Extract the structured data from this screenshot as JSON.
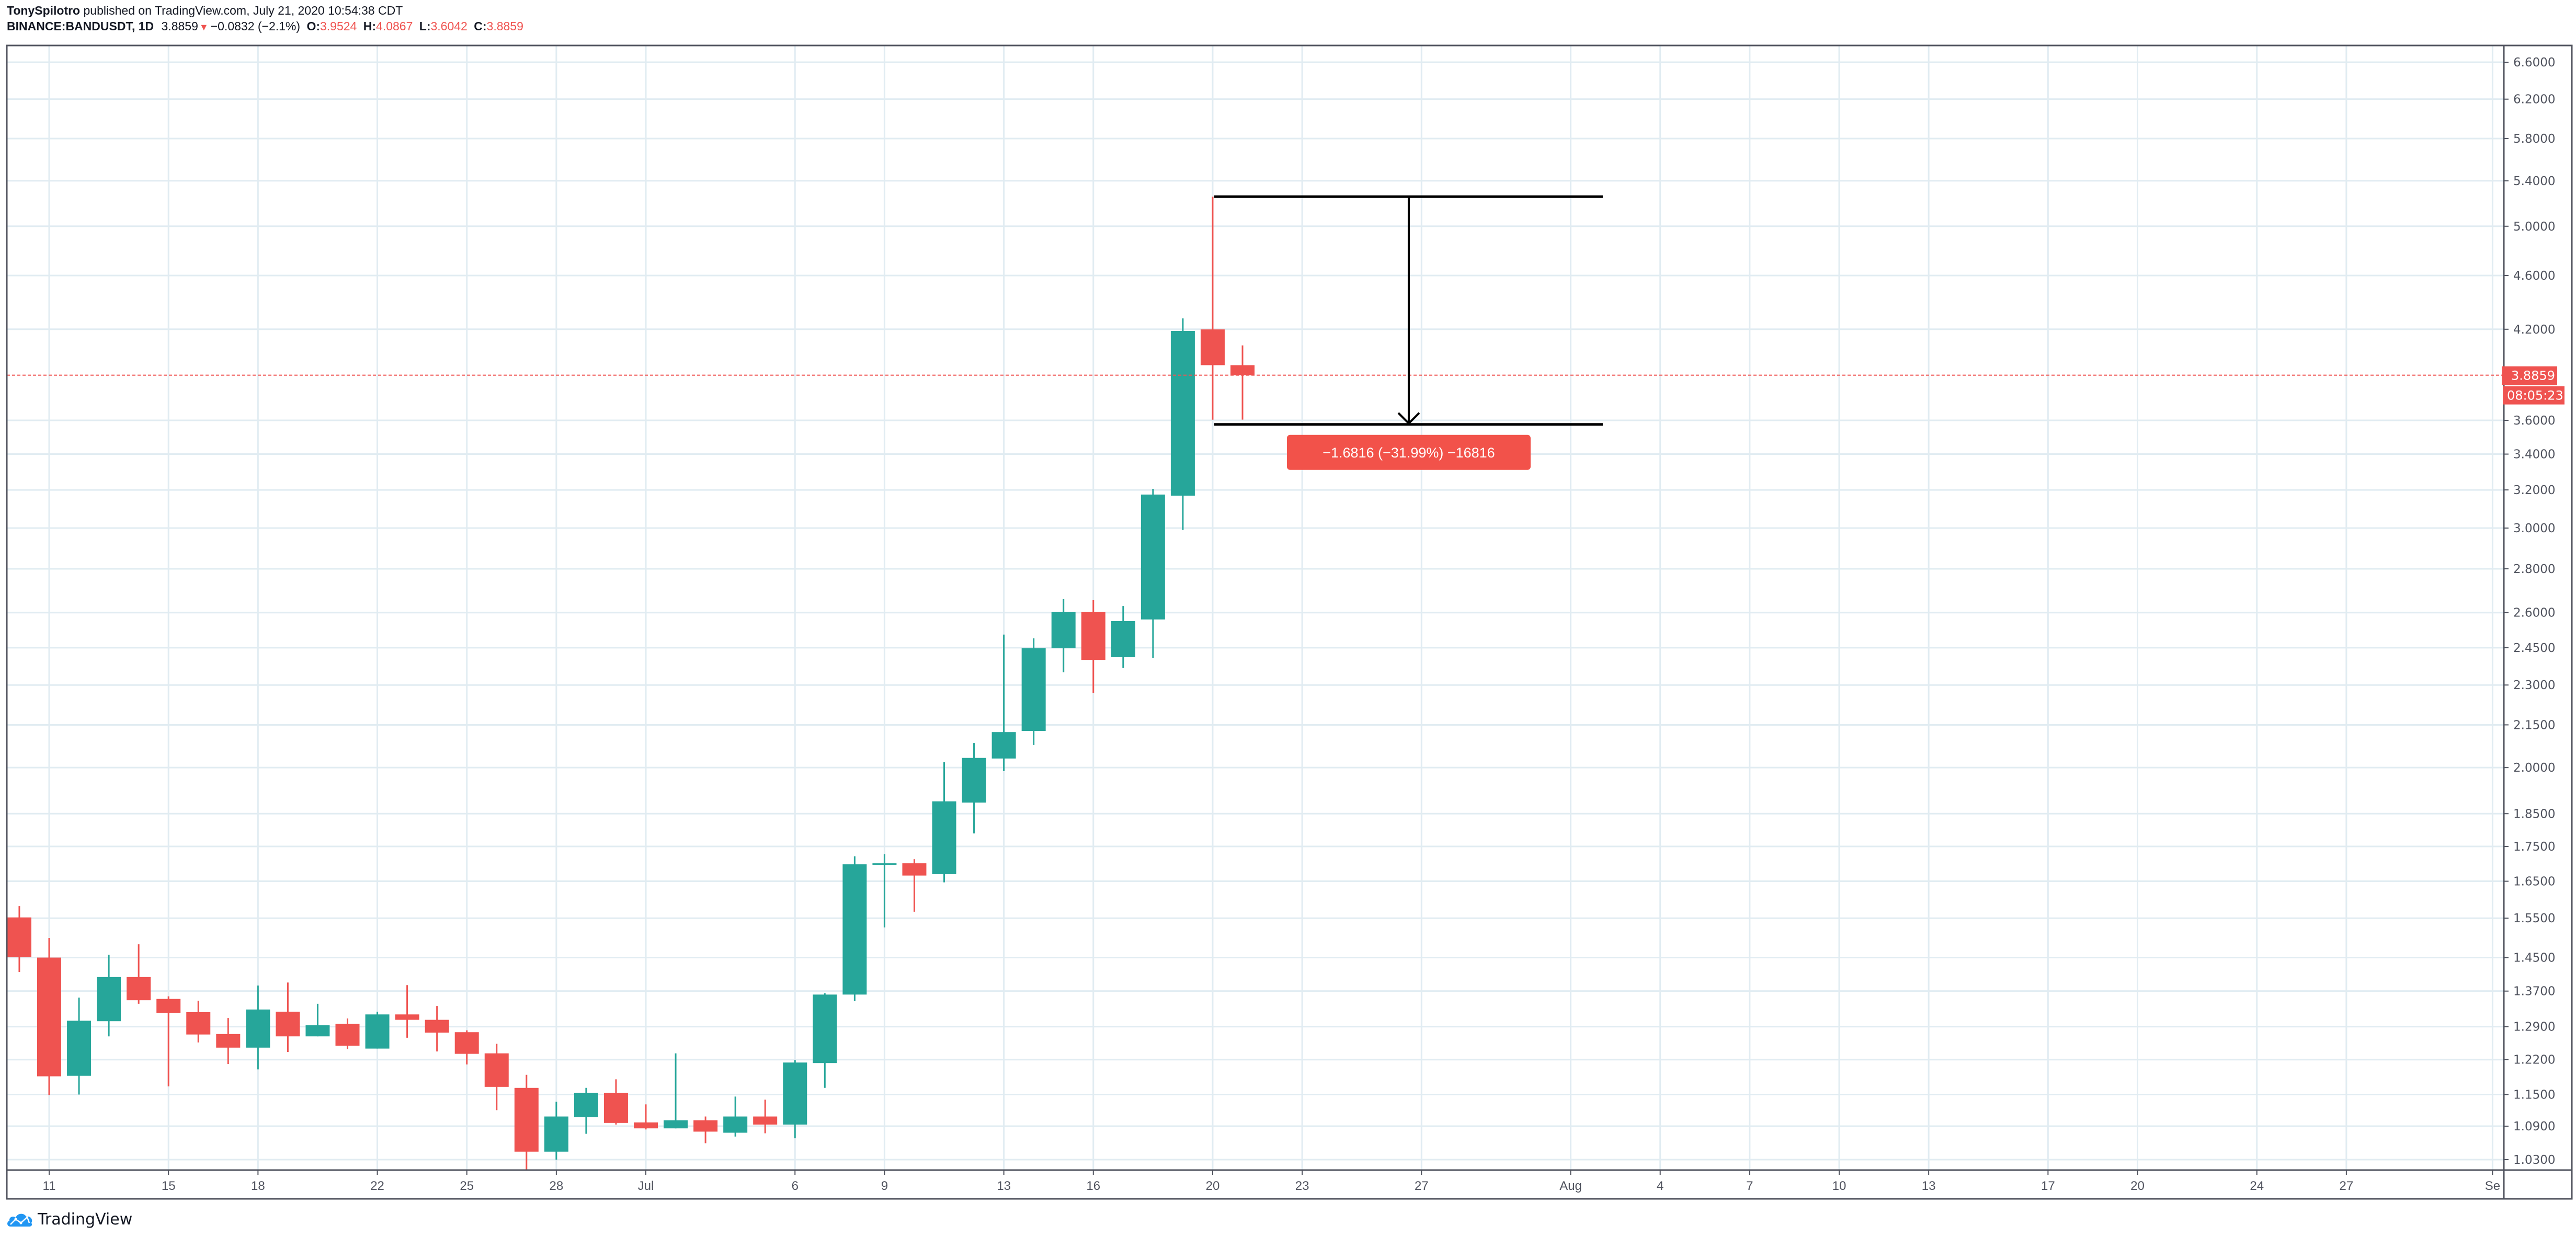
{
  "header": {
    "author": "TonySpilotro",
    "published": "published on TradingView.com, July 21, 2020 10:54:38 CDT",
    "symbol": "BINANCE:BANDUSDT, 1D",
    "last": "3.8859",
    "direction_icon": "triangle-down-icon",
    "change": "−0.0832 (−2.1%)",
    "o_label": "O:",
    "o_value": "3.9524",
    "h_label": "H:",
    "h_value": "4.0867",
    "l_label": "L:",
    "l_value": "3.6042",
    "c_label": "C:",
    "c_value": "3.8859"
  },
  "footer": {
    "logo_icon": "tradingview-cloud-icon",
    "logo_text": "TradingView"
  },
  "colors": {
    "up": "#26a69a",
    "down": "#ef5350",
    "grid": "#e1ecf2",
    "border": "#50535e",
    "axis_text": "#50535e",
    "label_bg": "#ef5350",
    "measure_label_bg": "#f2524a"
  },
  "chart_data": {
    "type": "candlestick",
    "title": "BINANCE:BANDUSDT, 1D",
    "xlabel": "",
    "ylabel": "",
    "scale": "log",
    "ylim": [
      1.0,
      7.0
    ],
    "grid": true,
    "y_ticks": [
      "6.6000",
      "6.2000",
      "5.8000",
      "5.4000",
      "5.0000",
      "4.6000",
      "4.2000",
      "3.6000",
      "3.4000",
      "3.2000",
      "3.0000",
      "2.8000",
      "2.6000",
      "2.4500",
      "2.3000",
      "2.1500",
      "2.0000",
      "1.8500",
      "1.7500",
      "1.6500",
      "1.5500",
      "1.4500",
      "1.3700",
      "1.2900",
      "1.2200",
      "1.1500",
      "1.0900",
      "1.0300"
    ],
    "x_ticks": [
      {
        "label": "11",
        "day": 0
      },
      {
        "label": "15",
        "day": 4
      },
      {
        "label": "18",
        "day": 7
      },
      {
        "label": "22",
        "day": 11
      },
      {
        "label": "25",
        "day": 14
      },
      {
        "label": "28",
        "day": 17
      },
      {
        "label": "Jul",
        "day": 20
      },
      {
        "label": "6",
        "day": 25
      },
      {
        "label": "9",
        "day": 28
      },
      {
        "label": "13",
        "day": 32
      },
      {
        "label": "16",
        "day": 35
      },
      {
        "label": "20",
        "day": 39
      },
      {
        "label": "23",
        "day": 42
      },
      {
        "label": "27",
        "day": 46
      },
      {
        "label": "Aug",
        "day": 51
      },
      {
        "label": "4",
        "day": 54
      },
      {
        "label": "7",
        "day": 57
      },
      {
        "label": "10",
        "day": 60
      },
      {
        "label": "13",
        "day": 63
      },
      {
        "label": "17",
        "day": 67
      },
      {
        "label": "20",
        "day": 70
      },
      {
        "label": "24",
        "day": 74
      },
      {
        "label": "27",
        "day": 77
      },
      {
        "label": "Se",
        "day": 81.9
      }
    ],
    "candles": [
      {
        "date": "2020-06-10",
        "o": 1.552,
        "h": 1.582,
        "l": 1.415,
        "c": 1.451
      },
      {
        "date": "2020-06-11",
        "o": 1.45,
        "h": 1.499,
        "l": 1.149,
        "c": 1.186
      },
      {
        "date": "2020-06-12",
        "o": 1.187,
        "h": 1.355,
        "l": 1.15,
        "c": 1.303
      },
      {
        "date": "2020-06-13",
        "o": 1.302,
        "h": 1.457,
        "l": 1.269,
        "c": 1.403
      },
      {
        "date": "2020-06-14",
        "o": 1.403,
        "h": 1.483,
        "l": 1.341,
        "c": 1.349
      },
      {
        "date": "2020-06-15",
        "o": 1.352,
        "h": 1.358,
        "l": 1.166,
        "c": 1.32
      },
      {
        "date": "2020-06-16",
        "o": 1.322,
        "h": 1.348,
        "l": 1.256,
        "c": 1.273
      },
      {
        "date": "2020-06-17",
        "o": 1.274,
        "h": 1.309,
        "l": 1.211,
        "c": 1.245
      },
      {
        "date": "2020-06-18",
        "o": 1.245,
        "h": 1.383,
        "l": 1.2,
        "c": 1.328
      },
      {
        "date": "2020-06-19",
        "o": 1.323,
        "h": 1.39,
        "l": 1.236,
        "c": 1.269
      },
      {
        "date": "2020-06-20",
        "o": 1.269,
        "h": 1.341,
        "l": 1.269,
        "c": 1.293
      },
      {
        "date": "2020-06-21",
        "o": 1.296,
        "h": 1.308,
        "l": 1.242,
        "c": 1.249
      },
      {
        "date": "2020-06-22",
        "o": 1.243,
        "h": 1.323,
        "l": 1.243,
        "c": 1.317
      },
      {
        "date": "2020-06-23",
        "o": 1.317,
        "h": 1.384,
        "l": 1.266,
        "c": 1.305
      },
      {
        "date": "2020-06-24",
        "o": 1.305,
        "h": 1.336,
        "l": 1.237,
        "c": 1.277
      },
      {
        "date": "2020-06-25",
        "o": 1.278,
        "h": 1.282,
        "l": 1.21,
        "c": 1.232
      },
      {
        "date": "2020-06-26",
        "o": 1.233,
        "h": 1.253,
        "l": 1.12,
        "c": 1.165
      },
      {
        "date": "2020-06-27",
        "o": 1.163,
        "h": 1.189,
        "l": 1.008,
        "c": 1.044
      },
      {
        "date": "2020-06-28",
        "o": 1.044,
        "h": 1.136,
        "l": 1.03,
        "c": 1.108
      },
      {
        "date": "2020-06-29",
        "o": 1.107,
        "h": 1.163,
        "l": 1.076,
        "c": 1.153
      },
      {
        "date": "2020-06-30",
        "o": 1.153,
        "h": 1.18,
        "l": 1.093,
        "c": 1.096
      },
      {
        "date": "2020-07-01",
        "o": 1.097,
        "h": 1.131,
        "l": 1.084,
        "c": 1.086
      },
      {
        "date": "2020-07-02",
        "o": 1.086,
        "h": 1.233,
        "l": 1.086,
        "c": 1.101
      },
      {
        "date": "2020-07-03",
        "o": 1.101,
        "h": 1.108,
        "l": 1.059,
        "c": 1.08
      },
      {
        "date": "2020-07-04",
        "o": 1.078,
        "h": 1.146,
        "l": 1.071,
        "c": 1.108
      },
      {
        "date": "2020-07-05",
        "o": 1.108,
        "h": 1.14,
        "l": 1.077,
        "c": 1.093
      },
      {
        "date": "2020-07-06",
        "o": 1.093,
        "h": 1.219,
        "l": 1.068,
        "c": 1.214
      },
      {
        "date": "2020-07-07",
        "o": 1.213,
        "h": 1.365,
        "l": 1.163,
        "c": 1.362
      },
      {
        "date": "2020-07-08",
        "o": 1.362,
        "h": 1.721,
        "l": 1.347,
        "c": 1.698
      },
      {
        "date": "2020-07-09",
        "o": 1.7,
        "h": 1.727,
        "l": 1.526,
        "c": 1.701
      },
      {
        "date": "2020-07-10",
        "o": 1.701,
        "h": 1.713,
        "l": 1.567,
        "c": 1.666
      },
      {
        "date": "2020-07-11",
        "o": 1.67,
        "h": 2.018,
        "l": 1.647,
        "c": 1.889
      },
      {
        "date": "2020-07-12",
        "o": 1.885,
        "h": 2.085,
        "l": 1.789,
        "c": 2.033
      },
      {
        "date": "2020-07-13",
        "o": 2.031,
        "h": 2.505,
        "l": 1.988,
        "c": 2.124
      },
      {
        "date": "2020-07-14",
        "o": 2.128,
        "h": 2.489,
        "l": 2.078,
        "c": 2.448
      },
      {
        "date": "2020-07-15",
        "o": 2.448,
        "h": 2.66,
        "l": 2.35,
        "c": 2.602
      },
      {
        "date": "2020-07-16",
        "o": 2.602,
        "h": 2.655,
        "l": 2.27,
        "c": 2.4
      },
      {
        "date": "2020-07-17",
        "o": 2.411,
        "h": 2.629,
        "l": 2.367,
        "c": 2.563
      },
      {
        "date": "2020-07-18",
        "o": 2.57,
        "h": 3.206,
        "l": 2.407,
        "c": 3.175
      },
      {
        "date": "2020-07-19",
        "o": 3.169,
        "h": 4.278,
        "l": 2.99,
        "c": 4.188
      },
      {
        "date": "2020-07-20",
        "o": 4.199,
        "h": 5.2567,
        "l": 3.604,
        "c": 3.9524
      },
      {
        "date": "2020-07-21",
        "o": 3.9524,
        "h": 4.0867,
        "l": 3.6042,
        "c": 3.8859
      }
    ],
    "last_price": {
      "value": 3.8859,
      "label": "3.8859",
      "countdown": "08:05:23"
    },
    "annotations": [
      {
        "type": "price-range-measure",
        "from_price": 5.2567,
        "to_price": 3.5751,
        "from_day": 39,
        "to_day": 52,
        "label": "−1.6816 (−31.99%) −16816"
      }
    ],
    "x_origin": "2020-06-11"
  }
}
